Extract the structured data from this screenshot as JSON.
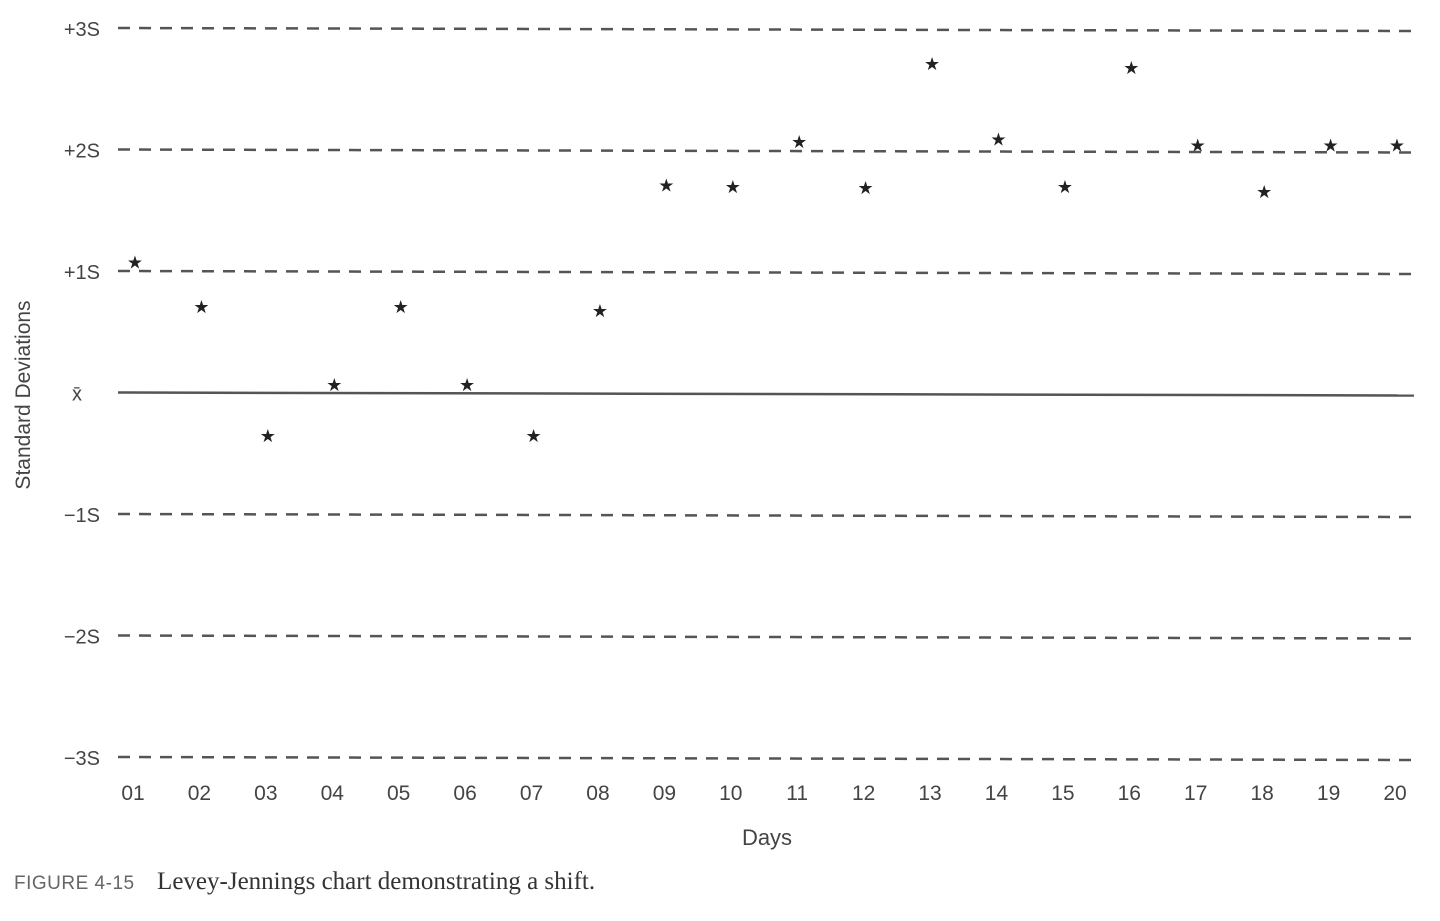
{
  "chart_data": {
    "type": "scatter",
    "title": "",
    "xlabel": "Days",
    "ylabel": "Standard Deviations",
    "categories": [
      "01",
      "02",
      "03",
      "04",
      "05",
      "06",
      "07",
      "08",
      "09",
      "10",
      "11",
      "12",
      "13",
      "14",
      "15",
      "16",
      "17",
      "18",
      "19",
      "20"
    ],
    "values": [
      1.08,
      0.71,
      -0.35,
      0.07,
      0.71,
      0.07,
      -0.35,
      0.68,
      1.71,
      1.7,
      2.07,
      1.69,
      2.71,
      2.09,
      1.7,
      2.68,
      2.04,
      1.66,
      2.04,
      2.04
    ],
    "ylim": [
      -3,
      3
    ],
    "y_ticks": [
      {
        "value": 3,
        "label": "+3S",
        "style": "dashed"
      },
      {
        "value": 2,
        "label": "+2S",
        "style": "dashed"
      },
      {
        "value": 1,
        "label": "+1S",
        "style": "dashed"
      },
      {
        "value": 0,
        "label": "x̄",
        "style": "solid"
      },
      {
        "value": -1,
        "label": "−1S",
        "style": "dashed"
      },
      {
        "value": -2,
        "label": "−2S",
        "style": "dashed"
      },
      {
        "value": -3,
        "label": "−3S",
        "style": "dashed"
      }
    ],
    "marker": "star",
    "grid": true,
    "color": "#222222"
  },
  "caption": {
    "figure_number": "FIGURE 4-15",
    "text": "Levey-Jennings chart demonstrating a shift."
  }
}
